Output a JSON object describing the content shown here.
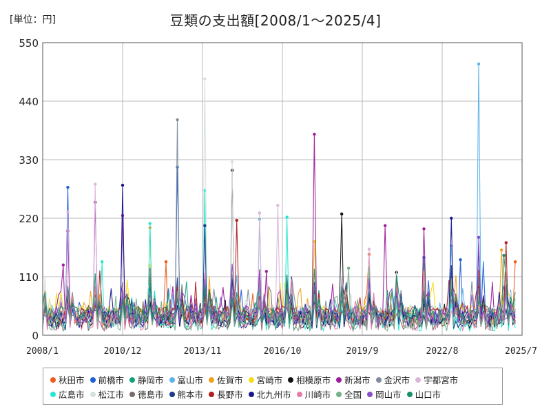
{
  "unit_label": "[単位：円]",
  "chart_data": {
    "type": "line",
    "title": "豆類の支出額[2008/1～2025/4]",
    "ylim": [
      0,
      550
    ],
    "y_ticks": [
      "0",
      "110",
      "220",
      "330",
      "440",
      "550"
    ],
    "x_ticks": [
      "2008/1",
      "2010/12",
      "2013/11",
      "2016/10",
      "2019/9",
      "2022/8",
      "2025/7"
    ],
    "x_range": [
      "2008/1",
      "2025/7"
    ],
    "grid": true,
    "legend_position": "bottom",
    "series": [
      {
        "name": "秋田市",
        "color": "#f05a1a"
      },
      {
        "name": "前橋市",
        "color": "#1f5fd6"
      },
      {
        "name": "静岡市",
        "color": "#12a37a"
      },
      {
        "name": "富山市",
        "color": "#5ab4ea"
      },
      {
        "name": "佐賀市",
        "color": "#f0a11c"
      },
      {
        "name": "宮崎市",
        "color": "#f5dc14"
      },
      {
        "name": "相模原市",
        "color": "#111111"
      },
      {
        "name": "新潟市",
        "color": "#9b1d9b"
      },
      {
        "name": "金沢市",
        "color": "#7f8c99"
      },
      {
        "name": "宇都宮市",
        "color": "#dcb4dc"
      },
      {
        "name": "広島市",
        "color": "#26e6d2"
      },
      {
        "name": "松江市",
        "color": "#d6e0dc"
      },
      {
        "name": "徳島市",
        "color": "#7a6a6a"
      },
      {
        "name": "熊本市",
        "color": "#1c3a8a"
      },
      {
        "name": "長野市",
        "color": "#b31c1c"
      },
      {
        "name": "北九州市",
        "color": "#18188c"
      },
      {
        "name": "川崎市",
        "color": "#e87aa8"
      },
      {
        "name": "全国",
        "color": "#74b08a"
      },
      {
        "name": "岡山市",
        "color": "#8a4fc8"
      },
      {
        "name": "山口市",
        "color": "#16906a"
      }
    ],
    "spikes": [
      {
        "series": "前橋市",
        "x": "2008/12",
        "y": 278
      },
      {
        "series": "宇都宮市",
        "x": "2008/12",
        "y": 232
      },
      {
        "series": "新潟市",
        "x": "2008/12",
        "y": 196
      },
      {
        "series": "新潟市",
        "x": "2008/10",
        "y": 132
      },
      {
        "series": "宇都宮市",
        "x": "2009/12",
        "y": 284
      },
      {
        "series": "新潟市",
        "x": "2009/12",
        "y": 250
      },
      {
        "series": "広島市",
        "x": "2010/3",
        "y": 138
      },
      {
        "series": "北九州市",
        "x": "2010/12",
        "y": 282
      },
      {
        "series": "新潟市",
        "x": "2010/12",
        "y": 225
      },
      {
        "series": "広島市",
        "x": "2011/12",
        "y": 210
      },
      {
        "series": "佐賀市",
        "x": "2011/12",
        "y": 202
      },
      {
        "series": "金沢市",
        "x": "2012/12",
        "y": 405
      },
      {
        "series": "前橋市",
        "x": "2012/12",
        "y": 316
      },
      {
        "series": "秋田市",
        "x": "2012/7",
        "y": 138
      },
      {
        "series": "松江市",
        "x": "2013/12",
        "y": 482
      },
      {
        "series": "広島市",
        "x": "2013/12",
        "y": 272
      },
      {
        "series": "熊本市",
        "x": "2013/12",
        "y": 206
      },
      {
        "series": "相模原市",
        "x": "2014/12",
        "y": 310
      },
      {
        "series": "松江市",
        "x": "2014/12",
        "y": 326
      },
      {
        "series": "長野市",
        "x": "2015/2",
        "y": 216
      },
      {
        "series": "宇都宮市",
        "x": "2015/12",
        "y": 230
      },
      {
        "series": "富山市",
        "x": "2015/12",
        "y": 218
      },
      {
        "series": "新潟市",
        "x": "2016/3",
        "y": 120
      },
      {
        "series": "宇都宮市",
        "x": "2016/8",
        "y": 244
      },
      {
        "series": "広島市",
        "x": "2016/12",
        "y": 222
      },
      {
        "series": "新潟市",
        "x": "2017/12",
        "y": 378
      },
      {
        "series": "宮崎市",
        "x": "2017/12",
        "y": 176
      },
      {
        "series": "相模原市",
        "x": "2018/12",
        "y": 228
      },
      {
        "series": "全国",
        "x": "2019/3",
        "y": 126
      },
      {
        "series": "宇都宮市",
        "x": "2019/12",
        "y": 162
      },
      {
        "series": "秋田市",
        "x": "2019/12",
        "y": 152
      },
      {
        "series": "新潟市",
        "x": "2020/7",
        "y": 206
      },
      {
        "series": "相模原市",
        "x": "2020/12",
        "y": 118
      },
      {
        "series": "新潟市",
        "x": "2021/12",
        "y": 200
      },
      {
        "series": "前橋市",
        "x": "2021/12",
        "y": 146
      },
      {
        "series": "北九州市",
        "x": "2022/12",
        "y": 220
      },
      {
        "series": "富山市",
        "x": "2022/12",
        "y": 168
      },
      {
        "series": "前橋市",
        "x": "2023/4",
        "y": 142
      },
      {
        "series": "富山市",
        "x": "2023/12",
        "y": 510
      },
      {
        "series": "岡山市",
        "x": "2023/12",
        "y": 184
      },
      {
        "series": "長野市",
        "x": "2024/12",
        "y": 174
      },
      {
        "series": "佐賀市",
        "x": "2024/10",
        "y": 160
      },
      {
        "series": "山口市",
        "x": "2024/11",
        "y": 150
      },
      {
        "series": "秋田市",
        "x": "2025/4",
        "y": 138
      }
    ]
  }
}
